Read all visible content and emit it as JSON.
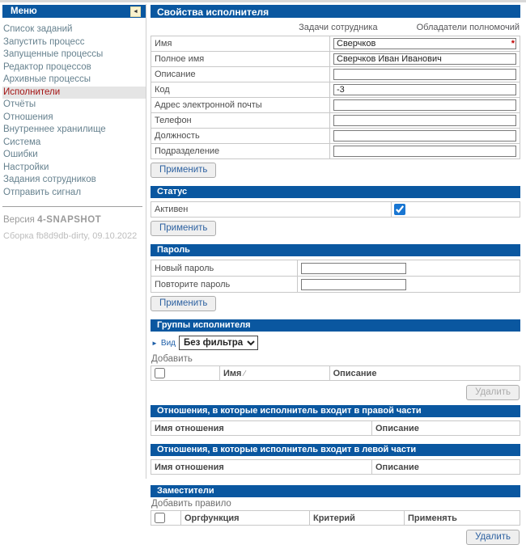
{
  "colors": {
    "header_blue": "#0a57a0",
    "selected_menu_text": "#a51414",
    "selected_menu_bg": "#e5e5e5",
    "menu_link": "#67828f",
    "required_red": "#c00000",
    "checkbox_accent": "#1976d2",
    "button_text": "#2e62a1"
  },
  "sidebar": {
    "header": "Меню",
    "collapse_icon": "◄",
    "items": [
      {
        "label": "Список заданий",
        "selected": false
      },
      {
        "label": "Запустить процесс",
        "selected": false
      },
      {
        "label": "Запущенные процессы",
        "selected": false
      },
      {
        "label": "Редактор процессов",
        "selected": false
      },
      {
        "label": "Архивные процессы",
        "selected": false
      },
      {
        "label": "Исполнители",
        "selected": true
      },
      {
        "label": "Отчёты",
        "selected": false
      },
      {
        "label": "Отношения",
        "selected": false
      },
      {
        "label": "Внутреннее хранилище",
        "selected": false
      },
      {
        "label": "Система",
        "selected": false
      },
      {
        "label": "Ошибки",
        "selected": false
      },
      {
        "label": "Настройки",
        "selected": false
      },
      {
        "label": "Задания сотрудников",
        "selected": false
      },
      {
        "label": "Отправить сигнал",
        "selected": false
      }
    ],
    "version_prefix": "Версия ",
    "version_value": "4-SNAPSHOT",
    "build_line": "Сборка fb8d9db-dirty, 09.10.2022"
  },
  "main": {
    "title": "Свойства исполнителя",
    "links": {
      "tasks": "Задачи сотрудника",
      "permissions": "Обладатели полномочий"
    },
    "properties": {
      "required_mark": "*",
      "rows": [
        {
          "label": "Имя",
          "value": "Сверчков"
        },
        {
          "label": "Полное имя",
          "value": "Сверчков Иван Иванович"
        },
        {
          "label": "Описание",
          "value": ""
        },
        {
          "label": "Код",
          "value": "-3"
        },
        {
          "label": "Адрес электронной почты",
          "value": ""
        },
        {
          "label": "Телефон",
          "value": ""
        },
        {
          "label": "Должность",
          "value": ""
        },
        {
          "label": "Подразделение",
          "value": ""
        }
      ],
      "apply_label": "Применить"
    },
    "status": {
      "title": "Статус",
      "active_label": "Активен",
      "checked_attr": "checked",
      "apply_label": "Применить"
    },
    "password": {
      "title": "Пароль",
      "new_label": "Новый пароль",
      "repeat_label": "Повторите пароль",
      "apply_label": "Применить"
    },
    "groups": {
      "title": "Группы исполнителя",
      "view_arrow": "►",
      "view_label": "Вид",
      "filter_value": "Без фильтра",
      "add_label": "Добавить",
      "col_name": "Имя",
      "sort_glyph": "⁄",
      "col_description": "Описание",
      "delete_label": "Удалить"
    },
    "relations_right": {
      "title": "Отношения, в которые исполнитель входит в правой части",
      "col_name": "Имя отношения",
      "col_description": "Описание"
    },
    "relations_left": {
      "title": "Отношения, в которые исполнитель входит в левой части",
      "col_name": "Имя отношения",
      "col_description": "Описание"
    },
    "substitutes": {
      "title": "Заместители",
      "add_label": "Добавить правило",
      "col_orgfunction": "Оргфункция",
      "col_criteria": "Критерий",
      "col_apply": "Применять",
      "delete_label": "Удалить"
    }
  }
}
